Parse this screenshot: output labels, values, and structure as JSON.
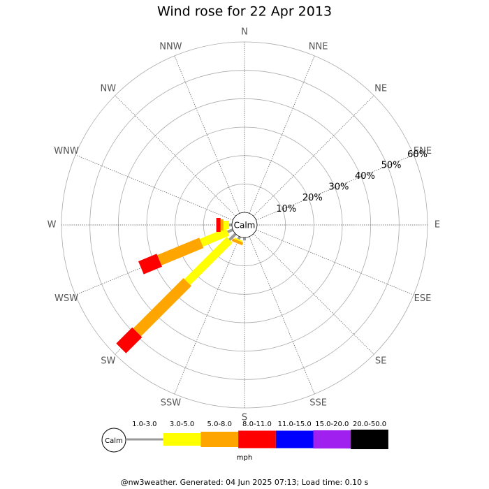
{
  "chart_data": {
    "type": "windrose",
    "title": "Wind rose for 22 Apr 2013",
    "calm_label": "Calm",
    "categories": [
      "N",
      "NNE",
      "NE",
      "ENE",
      "E",
      "ESE",
      "SE",
      "SSE",
      "S",
      "SSW",
      "SW",
      "WSW",
      "W",
      "WNW",
      "NW",
      "NNW"
    ],
    "series": [
      {
        "name": "1.0-3.0",
        "color": "#999999",
        "values": [
          0,
          0,
          0,
          0,
          0,
          0,
          0,
          0,
          1,
          1,
          3,
          2,
          1,
          0,
          0,
          0
        ]
      },
      {
        "name": "3.0-5.0",
        "color": "#ffff00",
        "values": [
          0,
          0,
          0,
          0,
          0,
          0,
          0,
          0,
          0,
          0.5,
          21,
          10,
          2,
          0,
          0,
          0
        ]
      },
      {
        "name": "5.0-8.0",
        "color": "#ffa500",
        "values": [
          0,
          0,
          0,
          0,
          0,
          0,
          0,
          0,
          0,
          1,
          25,
          16,
          1,
          0,
          0,
          0
        ]
      },
      {
        "name": "8.0-11.0",
        "color": "#ff0000",
        "values": [
          0,
          0,
          0,
          0,
          0,
          0,
          0,
          0,
          0,
          0,
          8,
          7,
          1.5,
          0,
          0,
          0
        ]
      },
      {
        "name": "11.0-15.0",
        "color": "#0000ff",
        "values": [
          0,
          0,
          0,
          0,
          0,
          0,
          0,
          0,
          0,
          0,
          0,
          0,
          0,
          0,
          0,
          0
        ]
      },
      {
        "name": "15.0-20.0",
        "color": "#a020f0",
        "values": [
          0,
          0,
          0,
          0,
          0,
          0,
          0,
          0,
          0,
          0,
          0,
          0,
          0,
          0,
          0,
          0
        ]
      },
      {
        "name": "20.0-50.0",
        "color": "#000000",
        "values": [
          0,
          0,
          0,
          0,
          0,
          0,
          0,
          0,
          0,
          0,
          0,
          0,
          0,
          0,
          0,
          0
        ]
      }
    ],
    "rlim": [
      0,
      60
    ],
    "rticks": [
      {
        "value": 10,
        "label": "10%"
      },
      {
        "value": 20,
        "label": "20%"
      },
      {
        "value": 30,
        "label": "30%"
      },
      {
        "value": 40,
        "label": "40%"
      },
      {
        "value": 50,
        "label": "50%"
      },
      {
        "value": 60,
        "label": "60%"
      }
    ],
    "unit": "mph",
    "footer": "@nw3weather. Generated: 04 Jun 2025 07:13; Load time: 0.10 s"
  }
}
